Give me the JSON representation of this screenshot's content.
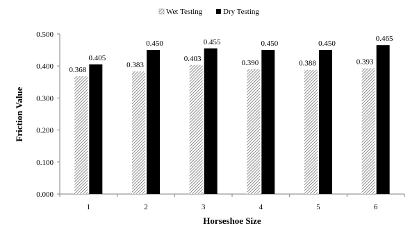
{
  "chart_data": {
    "type": "bar",
    "categories": [
      "1",
      "2",
      "3",
      "4",
      "5",
      "6"
    ],
    "series": [
      {
        "name": "Wet Testing",
        "values": [
          0.368,
          0.383,
          0.403,
          0.39,
          0.388,
          0.393
        ],
        "style": "hatched"
      },
      {
        "name": "Dry Testing",
        "values": [
          0.405,
          0.45,
          0.455,
          0.45,
          0.45,
          0.465
        ],
        "style": "solid",
        "color": "#000000"
      }
    ],
    "value_labels": [
      [
        "0.368",
        "0.383",
        "0.403",
        "0.390",
        "0.388",
        "0.393"
      ],
      [
        "0.405",
        "0.450",
        "0.455",
        "0.450",
        "0.450",
        "0.465"
      ]
    ],
    "title": "",
    "xlabel": "Horseshoe Size",
    "ylabel": "Friction Value",
    "ylim": [
      0,
      0.5
    ],
    "yticks": [
      "0.000",
      "0.100",
      "0.200",
      "0.300",
      "0.400",
      "0.500"
    ],
    "grid": false,
    "legend": "top-center"
  }
}
